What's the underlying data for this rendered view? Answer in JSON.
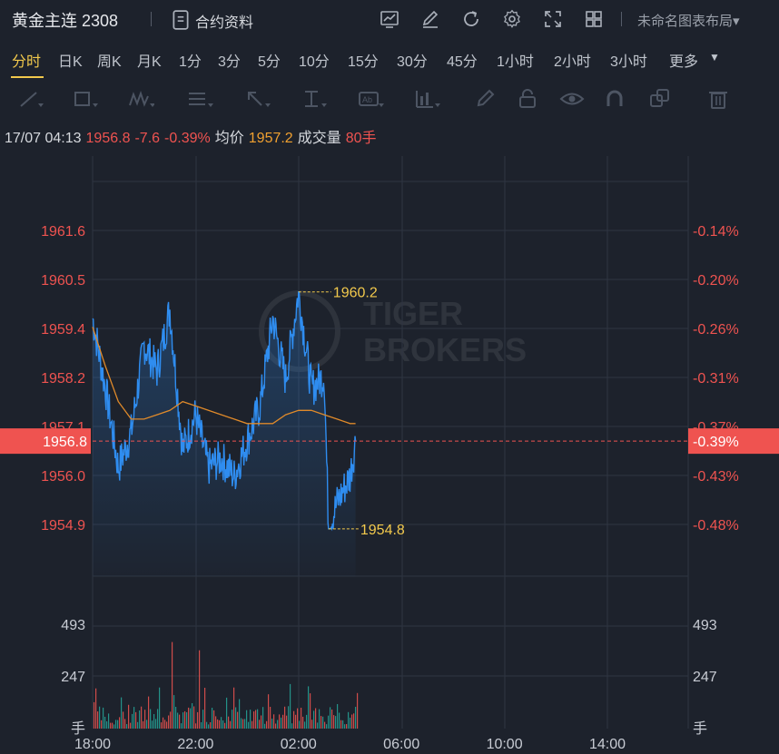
{
  "header": {
    "symbol": "黄金主连 2308",
    "doc_label": "合约资料",
    "layout_label": "未命名图表布局▾",
    "icons": [
      "chart-icon",
      "edit-icon",
      "refresh-icon",
      "settings-icon",
      "fullscreen-icon",
      "grid-icon"
    ]
  },
  "periods": [
    {
      "label": "分时",
      "active": true
    },
    {
      "label": "日K"
    },
    {
      "label": "周K"
    },
    {
      "label": "月K"
    },
    {
      "label": "1分"
    },
    {
      "label": "3分"
    },
    {
      "label": "5分"
    },
    {
      "label": "10分"
    },
    {
      "label": "15分"
    },
    {
      "label": "30分"
    },
    {
      "label": "45分"
    },
    {
      "label": "1小时"
    },
    {
      "label": "2小时"
    },
    {
      "label": "3小时"
    },
    {
      "label": "更多"
    }
  ],
  "tools": [
    "line-tool-icon",
    "rect-tool-icon",
    "wave-tool-icon",
    "fib-tool-icon",
    "arrow-tool-icon",
    "measure-tool-icon",
    "text-tool-icon",
    "indicator-tool-icon",
    "pen-icon",
    "lock-icon",
    "eye-icon",
    "magnet-icon",
    "layers-icon",
    "trash-icon"
  ],
  "info": {
    "time": "17/07 04:13",
    "price": "1956.8",
    "change": "-7.6",
    "change_pct": "-0.39%",
    "avg_label": "均价",
    "avg_value": "1957.2",
    "vol_label": "成交量",
    "vol_value": "80手"
  },
  "watermark": {
    "line1": "TIGER",
    "line2": "BROKERS"
  },
  "colors": {
    "price": "#2f8df0",
    "avg": "#e08a2a",
    "up": "#ef5350",
    "down": "#26a69a",
    "highlight": "#f2c94c",
    "grid": "#2f3542"
  },
  "chart_data": {
    "type": "line",
    "x_ticks": [
      "18:00",
      "22:00",
      "02:00",
      "06:00",
      "10:00",
      "14:00"
    ],
    "y_ticks_left": [
      "1961.6",
      "1960.5",
      "1959.4",
      "1958.2",
      "1957.1",
      "1956.0",
      "1954.9"
    ],
    "y_ticks_right": [
      "-0.14%",
      "-0.20%",
      "-0.26%",
      "-0.31%",
      "-0.37%",
      "-0.43%",
      "-0.48%"
    ],
    "ylim": [
      1954.9,
      1961.6
    ],
    "current_price": "1956.8",
    "current_pct": "-0.39%",
    "max_label": "1960.2",
    "min_label": "1954.8",
    "max_value": 1960.2,
    "min_value": 1954.8,
    "max_at": "02:00",
    "min_at": "03:10",
    "session_hours": [
      "18:00",
      "04:13"
    ],
    "series": [
      {
        "name": "price",
        "x": [
          "18:00",
          "18:30",
          "19:00",
          "19:30",
          "20:00",
          "20:30",
          "21:00",
          "21:30",
          "22:00",
          "22:30",
          "23:00",
          "23:30",
          "00:00",
          "00:30",
          "01:00",
          "01:30",
          "02:00",
          "02:30",
          "03:00",
          "03:10",
          "03:30",
          "04:00",
          "04:13"
        ],
        "values": [
          1959.6,
          1958.0,
          1956.2,
          1957.0,
          1959.0,
          1958.4,
          1959.8,
          1956.6,
          1957.4,
          1956.2,
          1956.4,
          1956.0,
          1956.8,
          1957.6,
          1959.6,
          1958.2,
          1960.2,
          1958.0,
          1958.3,
          1954.8,
          1955.4,
          1956.0,
          1956.8
        ]
      },
      {
        "name": "均价",
        "x": [
          "18:00",
          "18:30",
          "19:00",
          "19:30",
          "20:00",
          "20:30",
          "21:00",
          "21:30",
          "22:00",
          "22:30",
          "23:00",
          "23:30",
          "00:00",
          "00:30",
          "01:00",
          "01:30",
          "02:00",
          "02:30",
          "03:00",
          "03:30",
          "04:00",
          "04:13"
        ],
        "values": [
          1959.4,
          1958.5,
          1957.7,
          1957.3,
          1957.3,
          1957.4,
          1957.5,
          1957.7,
          1957.6,
          1957.5,
          1957.4,
          1957.3,
          1957.2,
          1957.2,
          1957.2,
          1957.4,
          1957.5,
          1957.5,
          1957.4,
          1957.3,
          1957.2,
          1957.2
        ]
      }
    ],
    "volume_ticks": [
      "493",
      "247",
      "手"
    ],
    "volume_max": 740
  }
}
